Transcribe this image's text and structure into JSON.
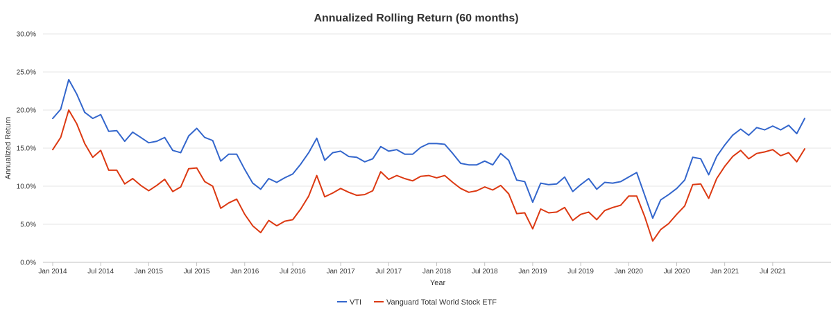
{
  "chart_data": {
    "type": "line",
    "title": "Annualized Rolling Return (60 months)",
    "xlabel": "Year",
    "ylabel": "Annualized Return",
    "ylim": [
      0,
      30
    ],
    "y_ticks": [
      "0.0%",
      "5.0%",
      "10.0%",
      "15.0%",
      "20.0%",
      "25.0%",
      "30.0%"
    ],
    "x_ticks": [
      "Jan 2014",
      "Jul 2014",
      "Jan 2015",
      "Jul 2015",
      "Jan 2016",
      "Jul 2016",
      "Jan 2017",
      "Jul 2017",
      "Jan 2018",
      "Jul 2018",
      "Jan 2019",
      "Jul 2019",
      "Jan 2020",
      "Jul 2020",
      "Jan 2021",
      "Jul 2021"
    ],
    "x_start": "Jan 2014",
    "x_end": "Nov 2021",
    "grid": true,
    "legend_position": "bottom",
    "series": [
      {
        "name": "VTI",
        "color": "#3366cc",
        "values": [
          18.9,
          20.1,
          24.0,
          22.1,
          19.7,
          18.9,
          19.4,
          17.2,
          17.3,
          15.9,
          17.1,
          16.4,
          15.7,
          15.9,
          16.4,
          14.7,
          14.4,
          16.6,
          17.6,
          16.4,
          16.0,
          13.3,
          14.2,
          14.2,
          12.2,
          10.4,
          9.6,
          11.0,
          10.5,
          11.1,
          11.6,
          12.9,
          14.4,
          16.3,
          13.4,
          14.4,
          14.6,
          13.9,
          13.8,
          13.2,
          13.6,
          15.2,
          14.6,
          14.8,
          14.2,
          14.2,
          15.1,
          15.6,
          15.6,
          15.5,
          14.3,
          13.0,
          12.8,
          12.8,
          13.3,
          12.8,
          14.3,
          13.4,
          10.8,
          10.6,
          7.9,
          10.4,
          10.2,
          10.3,
          11.2,
          9.3,
          10.2,
          11.0,
          9.6,
          10.5,
          10.4,
          10.6,
          11.2,
          11.8,
          8.8,
          5.8,
          8.2,
          8.9,
          9.7,
          10.8,
          13.8,
          13.6,
          11.5,
          13.9,
          15.4,
          16.7,
          17.5,
          16.7,
          17.7,
          17.4,
          17.9,
          17.4,
          18.0,
          16.9,
          18.9
        ]
      },
      {
        "name": "Vanguard Total World Stock ETF",
        "color": "#dc3912",
        "values": [
          14.8,
          16.4,
          20.0,
          18.2,
          15.6,
          13.8,
          14.7,
          12.1,
          12.1,
          10.3,
          11.0,
          10.1,
          9.4,
          10.1,
          10.9,
          9.3,
          9.9,
          12.3,
          12.4,
          10.6,
          10.0,
          7.1,
          7.8,
          8.3,
          6.3,
          4.8,
          3.9,
          5.5,
          4.8,
          5.4,
          5.6,
          7.0,
          8.7,
          11.4,
          8.6,
          9.1,
          9.7,
          9.2,
          8.8,
          8.9,
          9.4,
          11.9,
          10.9,
          11.4,
          11.0,
          10.7,
          11.3,
          11.4,
          11.1,
          11.4,
          10.5,
          9.7,
          9.2,
          9.4,
          9.9,
          9.5,
          10.1,
          9.0,
          6.4,
          6.5,
          4.4,
          7.0,
          6.5,
          6.6,
          7.2,
          5.5,
          6.3,
          6.6,
          5.6,
          6.8,
          7.2,
          7.5,
          8.7,
          8.7,
          6.0,
          2.8,
          4.3,
          5.1,
          6.3,
          7.4,
          10.2,
          10.3,
          8.4,
          11.0,
          12.6,
          13.9,
          14.7,
          13.6,
          14.3,
          14.5,
          14.8,
          14.0,
          14.4,
          13.2,
          14.9
        ]
      }
    ]
  }
}
